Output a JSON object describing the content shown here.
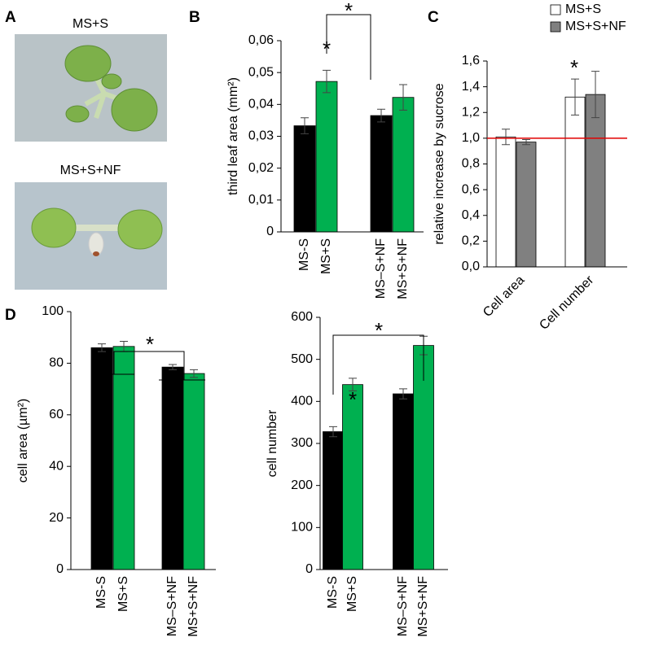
{
  "panel_a": {
    "label": "A",
    "photo_labels": [
      "MS+S",
      "MS+S+NF"
    ]
  },
  "chart_data": [
    {
      "type": "bar",
      "panel": "B",
      "ylabel": "third leaf area (mm²)",
      "categories": [
        "MS-S",
        "MS+S",
        "MS–S+NF",
        "MS+S+NF"
      ],
      "values": [
        0.0333,
        0.0472,
        0.0365,
        0.0422
      ],
      "errors": [
        0.0025,
        0.0035,
        0.002,
        0.004
      ],
      "colors": [
        "#000000",
        "#00b050",
        "#000000",
        "#00b050"
      ],
      "ylim": [
        0,
        0.06
      ],
      "yticks": [
        0,
        {
          "value": 0.01,
          "label": "0,01"
        },
        {
          "value": 0.02,
          "label": "0,02"
        },
        {
          "value": 0.03,
          "label": "0,03"
        },
        {
          "value": 0.04,
          "label": "0,04"
        },
        {
          "value": 0.05,
          "label": "0,05"
        },
        {
          "value": 0.06,
          "label": "0,06"
        }
      ],
      "annotations": [
        "*",
        "*"
      ]
    },
    {
      "type": "bar",
      "panel": "C",
      "ylabel": "relative increase by sucrose",
      "categories": [
        "Cell area",
        "Cell number"
      ],
      "series": [
        {
          "name": "MS+S",
          "color": "#ffffff",
          "values": [
            1.01,
            1.32
          ],
          "errors": [
            0.06,
            0.14
          ]
        },
        {
          "name": "MS+S+NF",
          "color": "#808080",
          "values": [
            0.97,
            1.34
          ],
          "errors": [
            0.02,
            0.18
          ]
        }
      ],
      "ylim": [
        0,
        1.6
      ],
      "yticks": [
        {
          "value": 0,
          "label": "0,0"
        },
        {
          "value": 0.2,
          "label": "0,2"
        },
        {
          "value": 0.4,
          "label": "0,4"
        },
        {
          "value": 0.6,
          "label": "0,6"
        },
        {
          "value": 0.8,
          "label": "0,8"
        },
        {
          "value": 1.0,
          "label": "1,0"
        },
        {
          "value": 1.2,
          "label": "1,2"
        },
        {
          "value": 1.4,
          "label": "1,4"
        },
        {
          "value": 1.6,
          "label": "1,6"
        }
      ],
      "reference_line": {
        "value": 1.0,
        "color": "#e00000"
      },
      "annotations": [
        "*"
      ]
    },
    {
      "type": "bar",
      "panel": "D",
      "ylabel": "cell area (µm²)",
      "categories": [
        "MS-S",
        "MS+S",
        "MS–S+NF",
        "MS+S+NF"
      ],
      "values": [
        86,
        86.5,
        78.5,
        76
      ],
      "errors": [
        1.5,
        2,
        1,
        1.5
      ],
      "colors": [
        "#000000",
        "#00b050",
        "#000000",
        "#00b050"
      ],
      "ylim": [
        0,
        100
      ],
      "yticks": [
        0,
        20,
        40,
        60,
        80,
        100
      ],
      "annotations": [
        "*"
      ]
    },
    {
      "type": "bar",
      "ylabel": "cell number",
      "categories": [
        "MS-S",
        "MS+S",
        "MS–S+NF",
        "MS+S+NF"
      ],
      "values": [
        328,
        440,
        418,
        533
      ],
      "errors": [
        12,
        15,
        12,
        22
      ],
      "colors": [
        "#000000",
        "#00b050",
        "#000000",
        "#00b050"
      ],
      "ylim": [
        0,
        600
      ],
      "yticks": [
        0,
        100,
        200,
        300,
        400,
        500,
        600
      ],
      "annotations": [
        "*",
        "*"
      ]
    }
  ]
}
